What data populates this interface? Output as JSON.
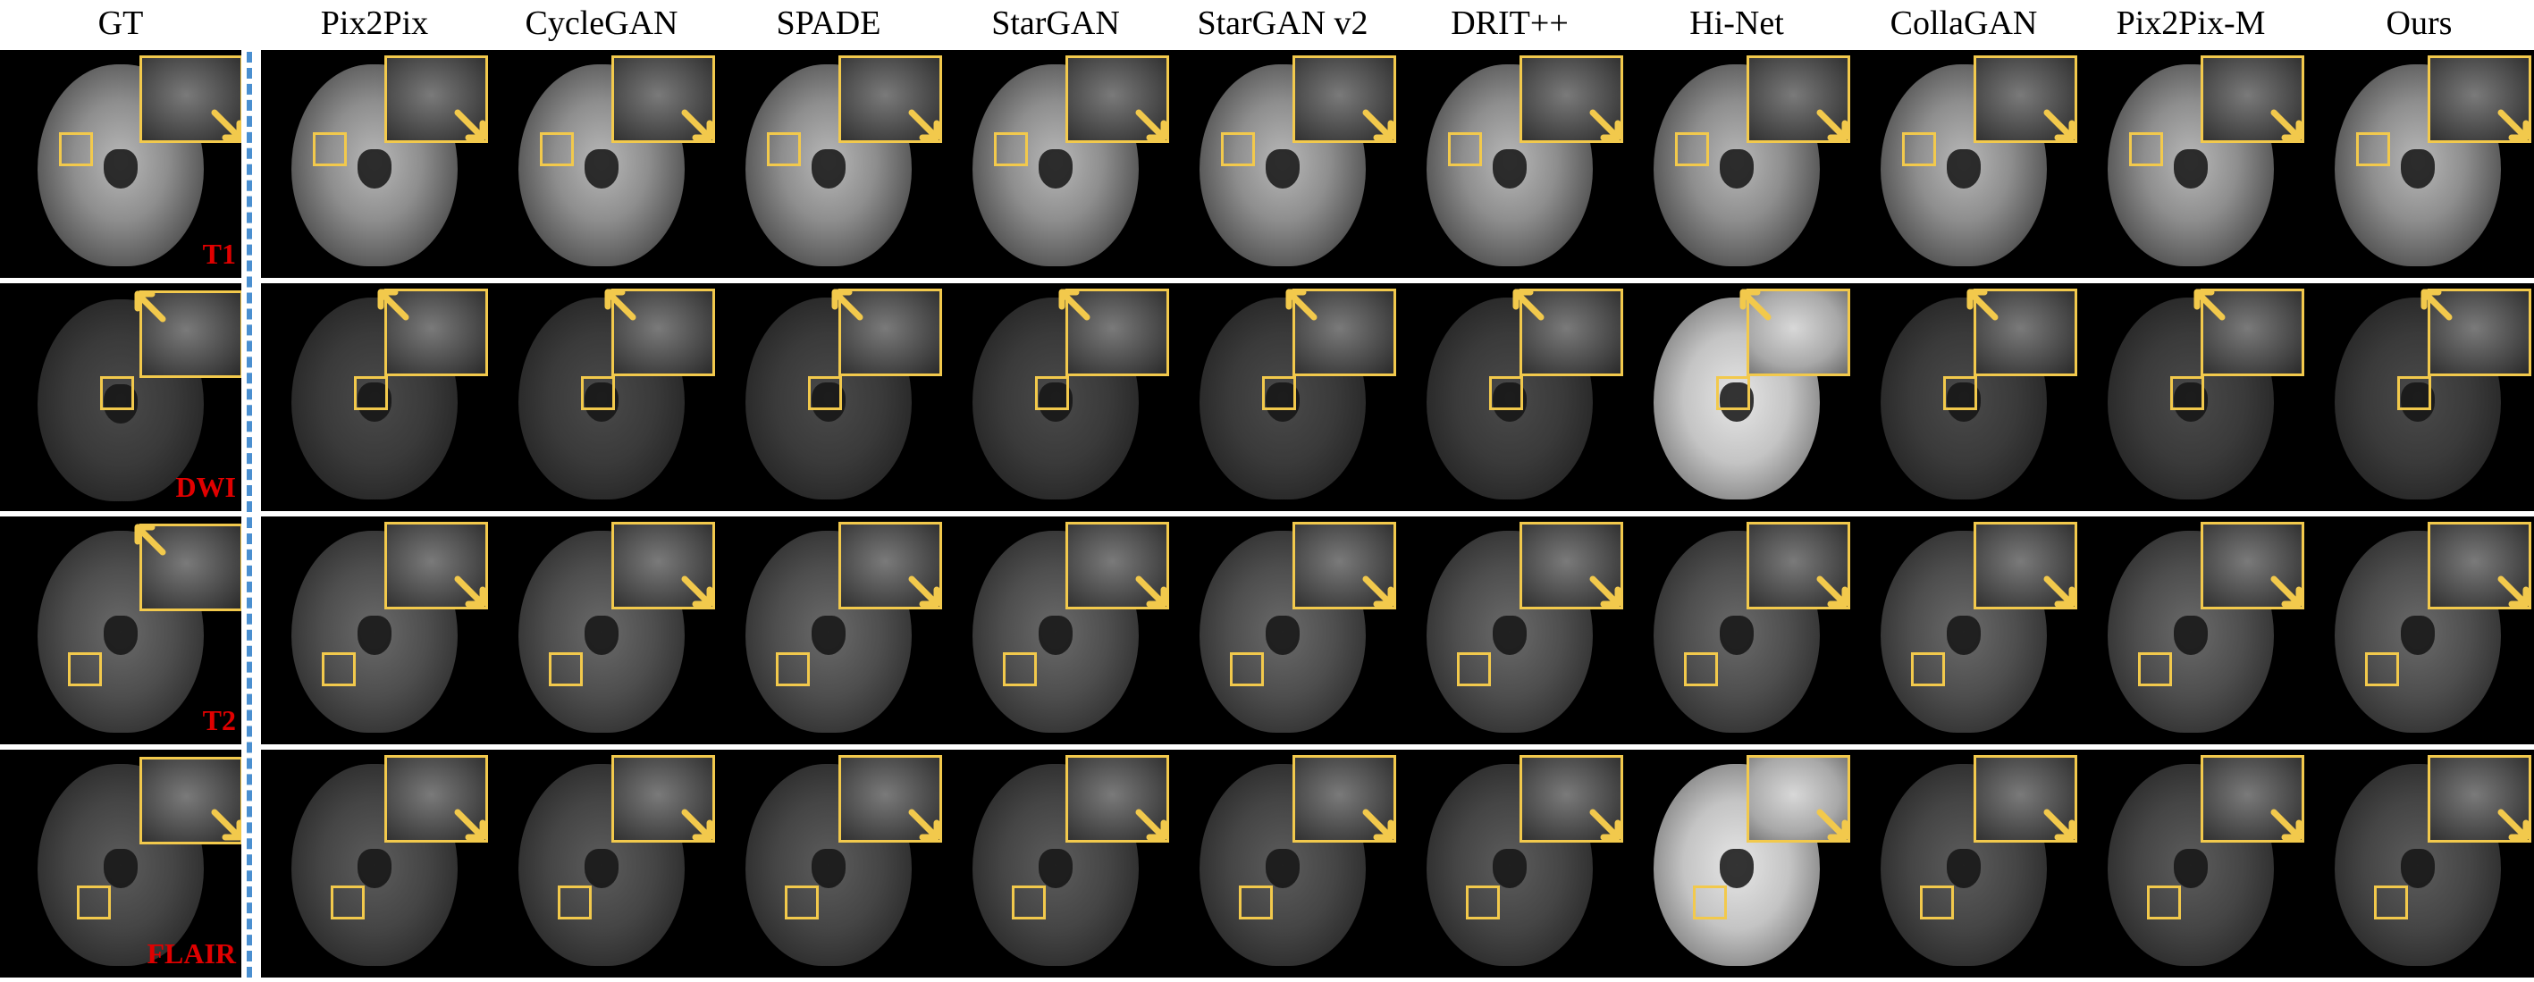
{
  "columns": {
    "gt": "GT",
    "methods": [
      "Pix2Pix",
      "CycleGAN",
      "SPADE",
      "StarGAN",
      "StarGAN v2",
      "DRIT++",
      "Hi-Net",
      "CollaGAN",
      "Pix2Pix-M",
      "Ours"
    ]
  },
  "rows": [
    {
      "modality": "T1"
    },
    {
      "modality": "DWI"
    },
    {
      "modality": "T2"
    },
    {
      "modality": "FLAIR"
    }
  ],
  "colors": {
    "highlight": "#f2c94c",
    "modality_label": "#e00000",
    "divider": "#4a8fd0"
  }
}
